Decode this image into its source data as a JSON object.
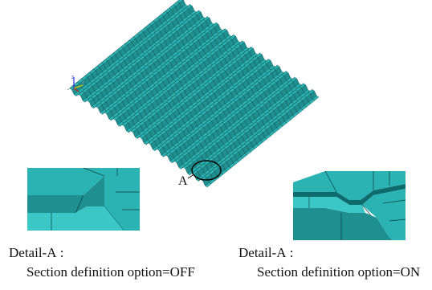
{
  "figure": {
    "callout_label": "A",
    "triad": {
      "x_axis_label": "Y",
      "z_axis_label": "Z"
    },
    "panels": [
      {
        "title": "Detail-A :",
        "subtitle": "Section definition option=OFF"
      },
      {
        "title": "Detail-A :",
        "subtitle": "Section definition option=ON"
      }
    ]
  },
  "colors": {
    "mesh_face": "#2bb3b3",
    "mesh_face_dark": "#1f8f90",
    "mesh_face_light": "#3cc7c7",
    "mesh_line": "#0c3d3d",
    "background": "#ffffff"
  }
}
